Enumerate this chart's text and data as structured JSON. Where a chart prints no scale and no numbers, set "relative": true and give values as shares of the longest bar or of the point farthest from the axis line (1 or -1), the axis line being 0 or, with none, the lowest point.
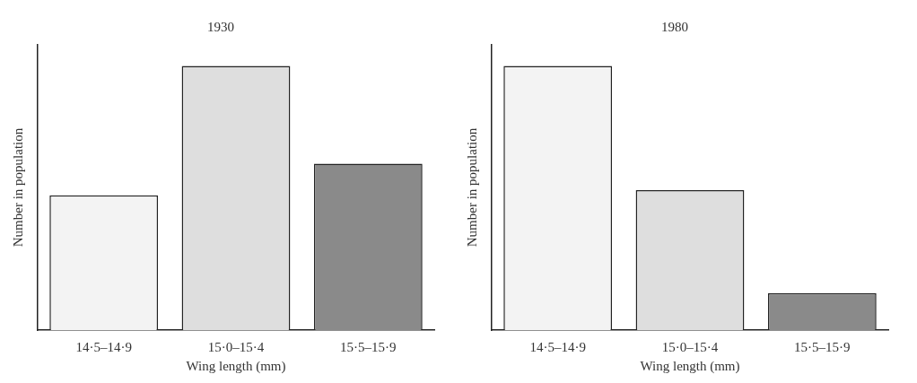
{
  "chart_data": [
    {
      "type": "bar",
      "title": "1930",
      "xlabel": "Wing length (mm)",
      "ylabel": "Number in population",
      "relative": true,
      "categories": [
        "14·5–14·9",
        "15·0–15·4",
        "15·5–15·9"
      ],
      "values": [
        0.51,
        1,
        0.63
      ],
      "colors": [
        "#f3f3f3",
        "#dedede",
        "#8a8a8a"
      ]
    },
    {
      "type": "bar",
      "title": "1980",
      "xlabel": "Wing length (mm)",
      "ylabel": "Number in population",
      "relative": true,
      "categories": [
        "14·5–14·9",
        "15·0–15·4",
        "15·5–15·9"
      ],
      "values": [
        1,
        0.53,
        0.14
      ],
      "colors": [
        "#f3f3f3",
        "#dedede",
        "#8a8a8a"
      ]
    }
  ]
}
